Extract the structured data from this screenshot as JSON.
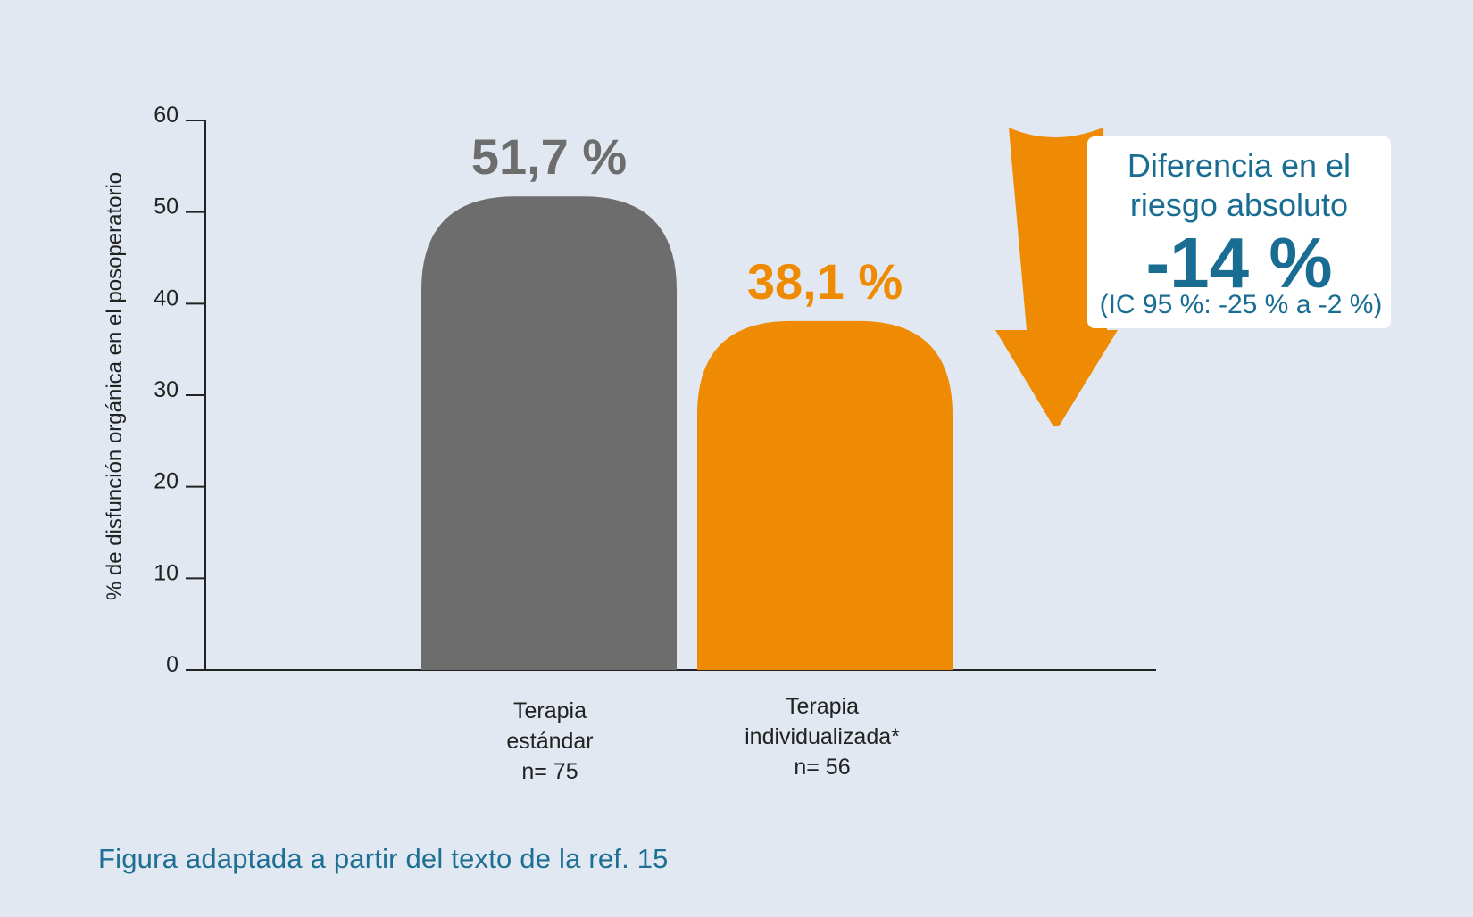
{
  "chart_data": {
    "type": "bar",
    "categories": [
      "Terapia estándar",
      "Terapia individualizada*"
    ],
    "category_lines": [
      [
        "Terapia",
        "estándar",
        "n= 75"
      ],
      [
        "Terapia",
        "individualizada*",
        "n= 56"
      ]
    ],
    "values": [
      51.7,
      38.1
    ],
    "value_labels": [
      "51,7 %",
      "38,1 %"
    ],
    "bar_colors": [
      "#6e6d6e",
      "#ef8a03"
    ],
    "ylabel": "% de disfunción orgánica en el posoperatorio",
    "xlabel": "",
    "ylim": [
      0,
      60
    ],
    "yticks": [
      0,
      10,
      20,
      30,
      40,
      50,
      60
    ],
    "grid": false
  },
  "callout": {
    "line1": "Diferencia en el",
    "line2": "riesgo absoluto",
    "value": "-14 %",
    "ci": "(IC 95 %: -25 % a -2 %)"
  },
  "caption": "Figura adaptada a partir del texto de la ref. 15",
  "colors": {
    "background": "#e1e8f1",
    "accent_orange": "#ef8a03",
    "bar_gray": "#6e6d6e",
    "text_blue": "#1a6d92"
  }
}
